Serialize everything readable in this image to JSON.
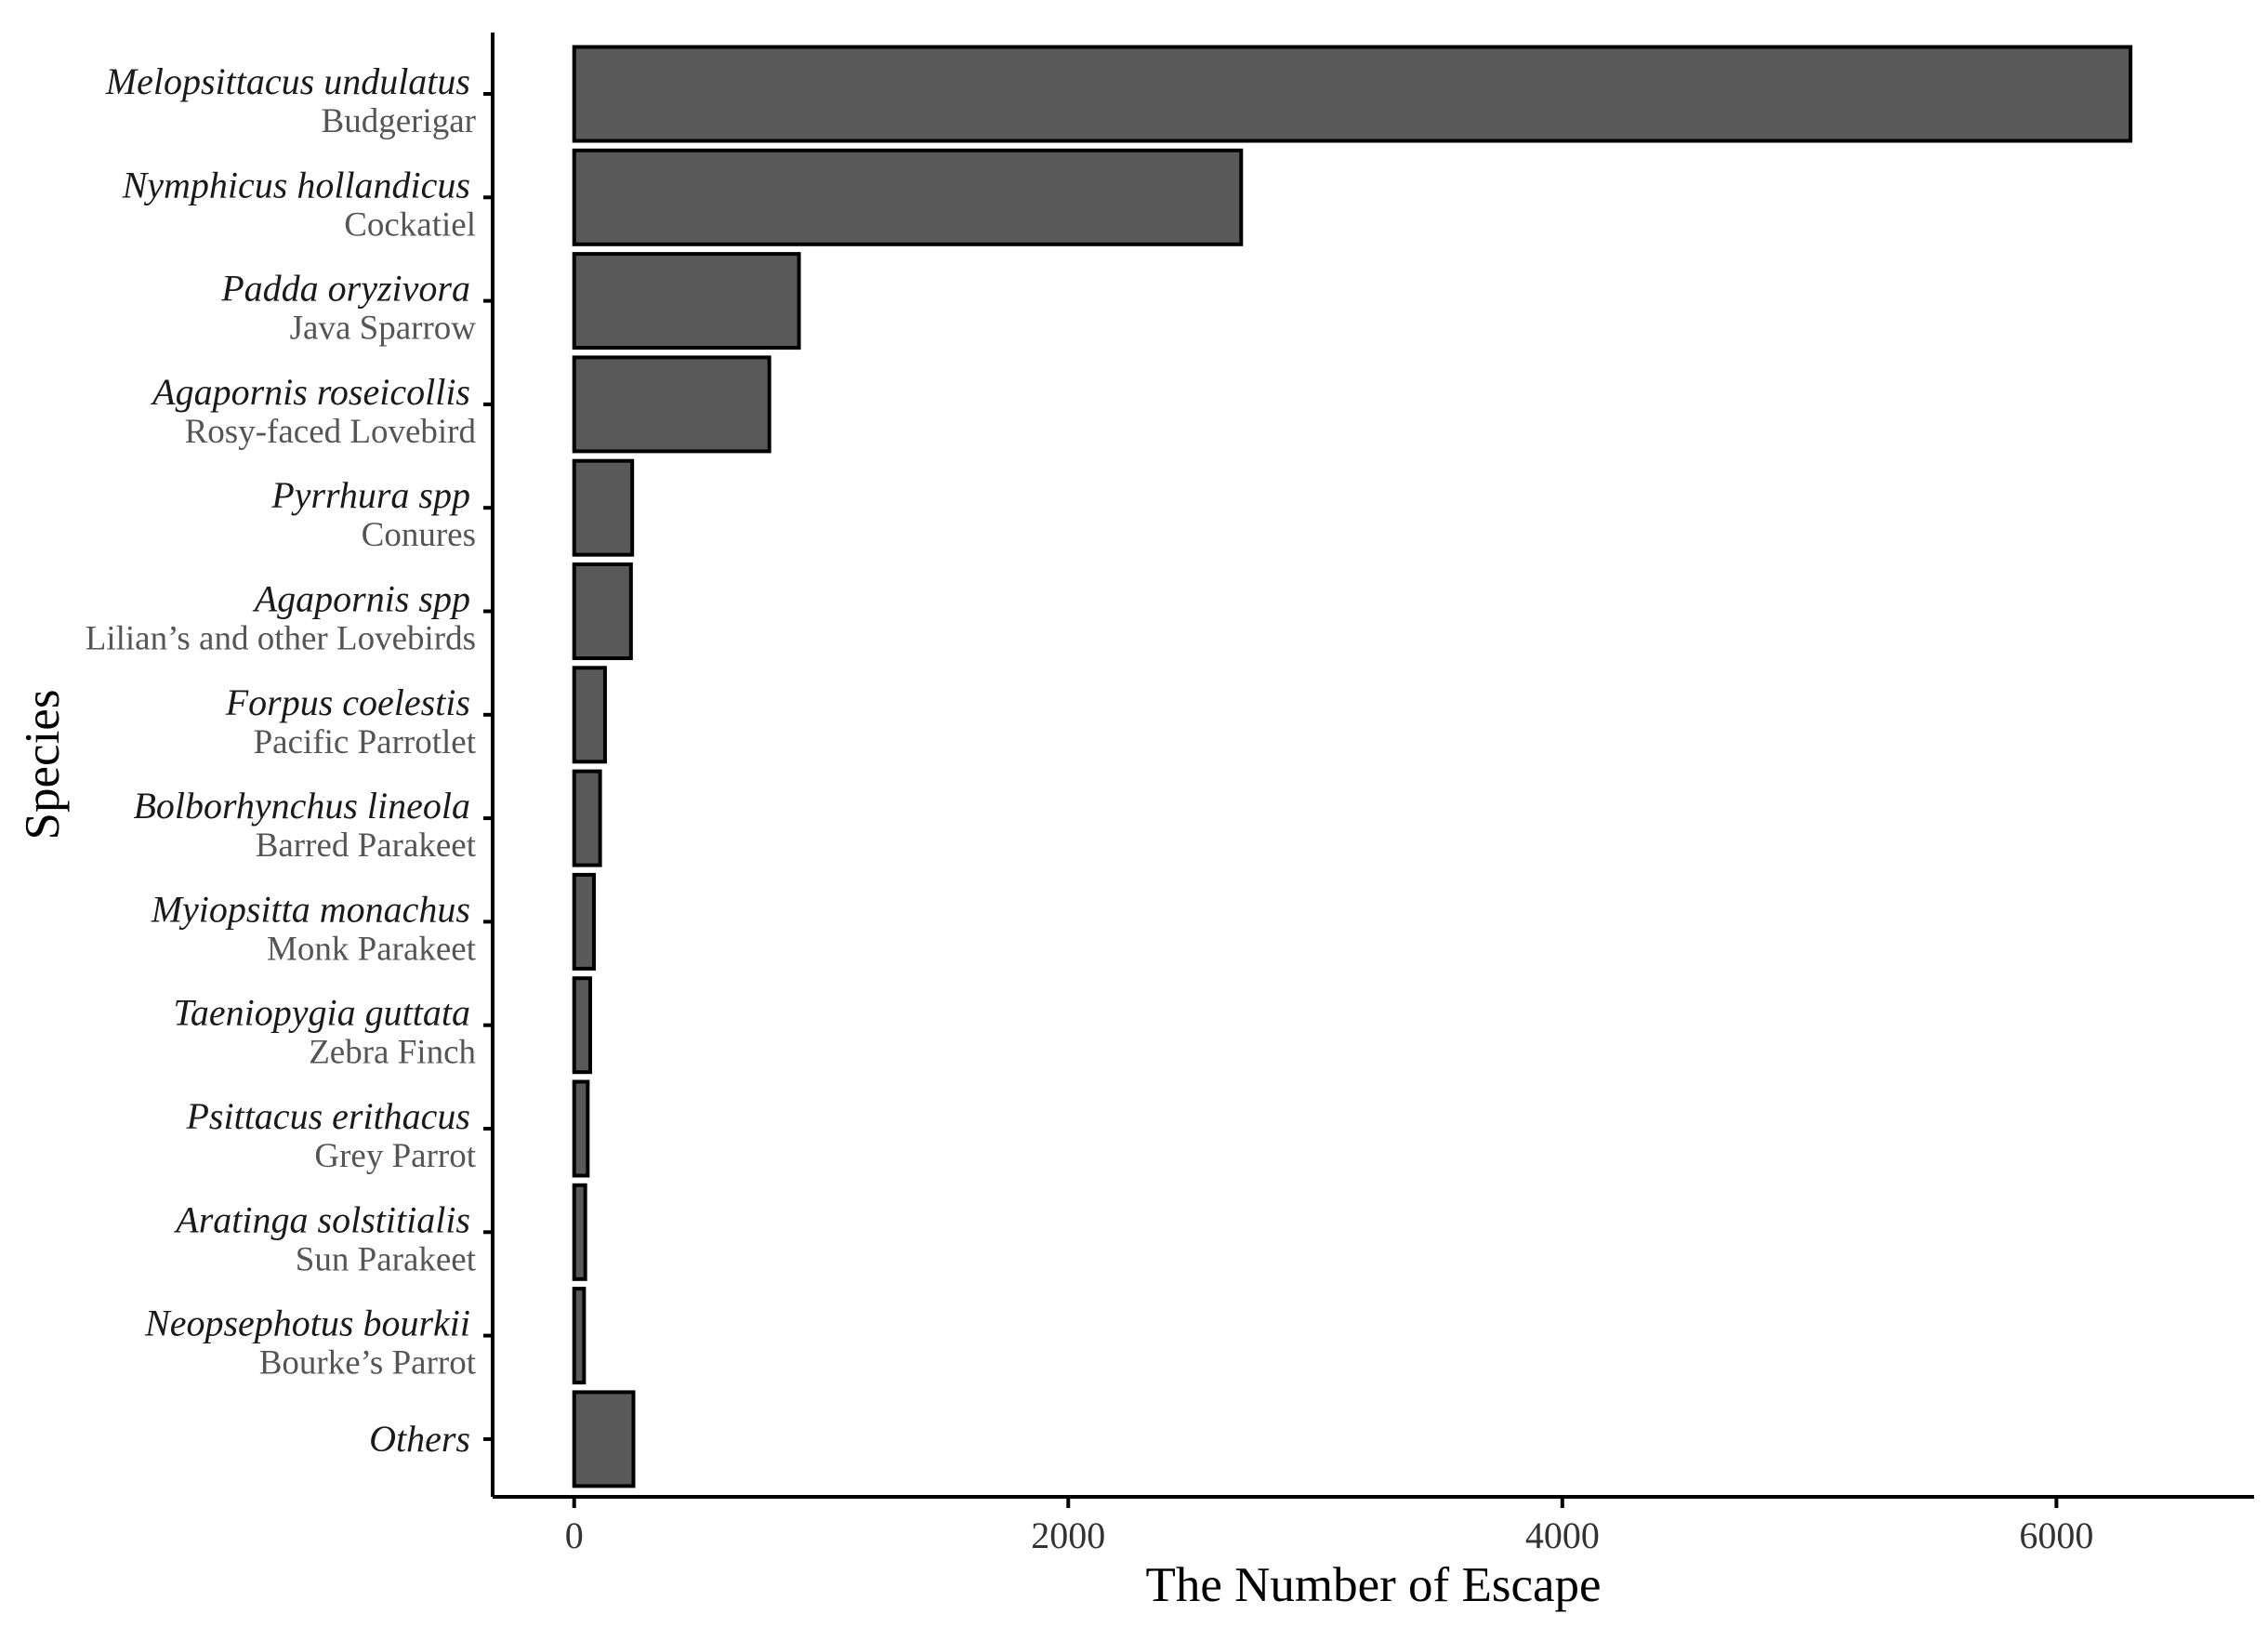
{
  "chart_data": {
    "type": "bar",
    "orientation": "horizontal",
    "xlabel": "The Number of Escape",
    "ylabel": "Species",
    "xlim": [
      -330,
      6800
    ],
    "xticks": [
      0,
      2000,
      4000,
      6000
    ],
    "xtick_labels": [
      "0",
      "2000",
      "4000",
      "6000"
    ],
    "grid": false,
    "bar_color": "#595959",
    "bar_edge_color": "#000000",
    "categories": [
      {
        "scientific": "Melopsittacus undulatus",
        "common": "Budgerigar"
      },
      {
        "scientific": "Nymphicus hollandicus",
        "common": "Cockatiel"
      },
      {
        "scientific": "Padda oryzivora",
        "common": "Java Sparrow"
      },
      {
        "scientific": "Agapornis roseicollis",
        "common": "Rosy-faced Lovebird"
      },
      {
        "scientific": "Pyrrhura spp",
        "common": "Conures"
      },
      {
        "scientific": "Agapornis spp",
        "common": "Lilian’s and other Lovebirds"
      },
      {
        "scientific": "Forpus coelestis",
        "common": "Pacific Parrotlet"
      },
      {
        "scientific": "Bolborhynchus lineola",
        "common": "Barred Parakeet"
      },
      {
        "scientific": "Myiopsitta monachus",
        "common": "Monk Parakeet"
      },
      {
        "scientific": "Taeniopygia guttata",
        "common": "Zebra Finch"
      },
      {
        "scientific": "Psittacus erithacus",
        "common": "Grey Parrot"
      },
      {
        "scientific": "Aratinga solstitialis",
        "common": "Sun Parakeet"
      },
      {
        "scientific": "Neopsephotus bourkii",
        "common": "Bourke’s Parrot"
      },
      {
        "scientific": "Others",
        "common": ""
      }
    ],
    "values": [
      6300,
      2700,
      910,
      790,
      235,
      230,
      125,
      105,
      80,
      65,
      55,
      45,
      40,
      240
    ]
  }
}
